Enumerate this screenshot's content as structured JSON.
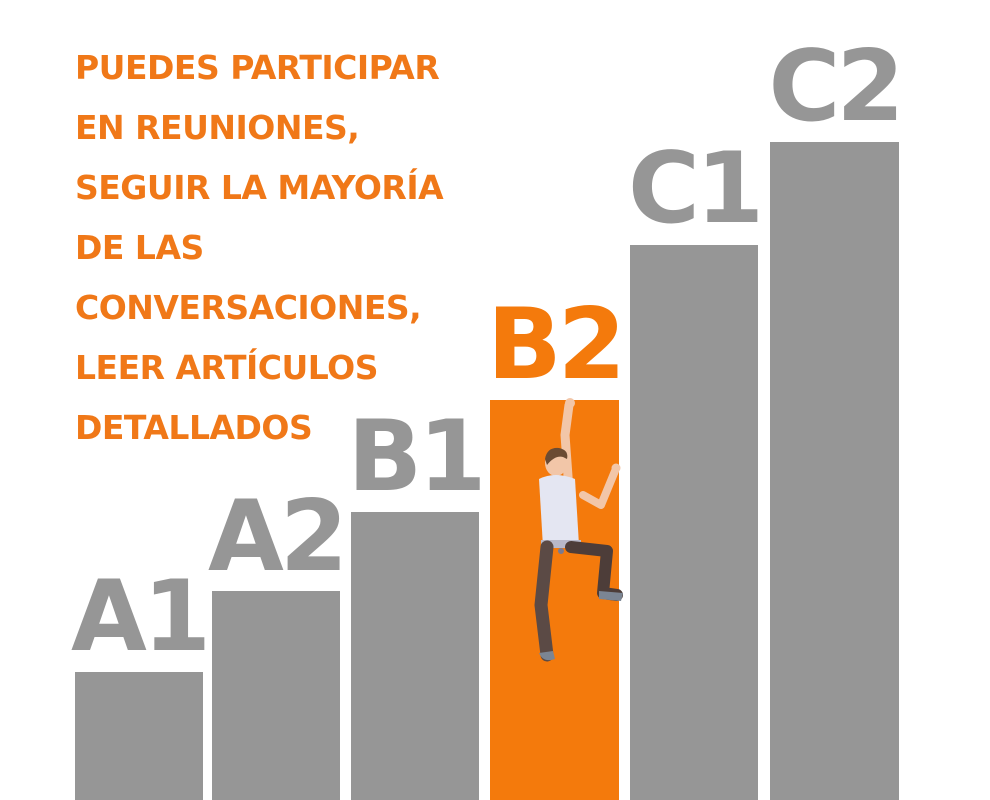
{
  "headline": {
    "lines": [
      "PUEDES PARTICIPAR",
      "EN REUNIONES,",
      "SEGUIR LA MAYORÍA",
      "DE LAS",
      "CONVERSACIONES,",
      "LEER ARTÍCULOS",
      "DETALLADOS"
    ],
    "color": "#f07818"
  },
  "levels": [
    {
      "label": "A1",
      "step": 1,
      "active": false
    },
    {
      "label": "A2",
      "step": 2,
      "active": false
    },
    {
      "label": "B1",
      "step": 3,
      "active": false
    },
    {
      "label": "B2",
      "step": 4,
      "active": true
    },
    {
      "label": "C1",
      "step": 5,
      "active": false
    },
    {
      "label": "C2",
      "step": 6,
      "active": false
    }
  ],
  "colors": {
    "bar": "#969696",
    "active": "#f47a0c"
  },
  "figure": {
    "icon": "climber-icon"
  }
}
